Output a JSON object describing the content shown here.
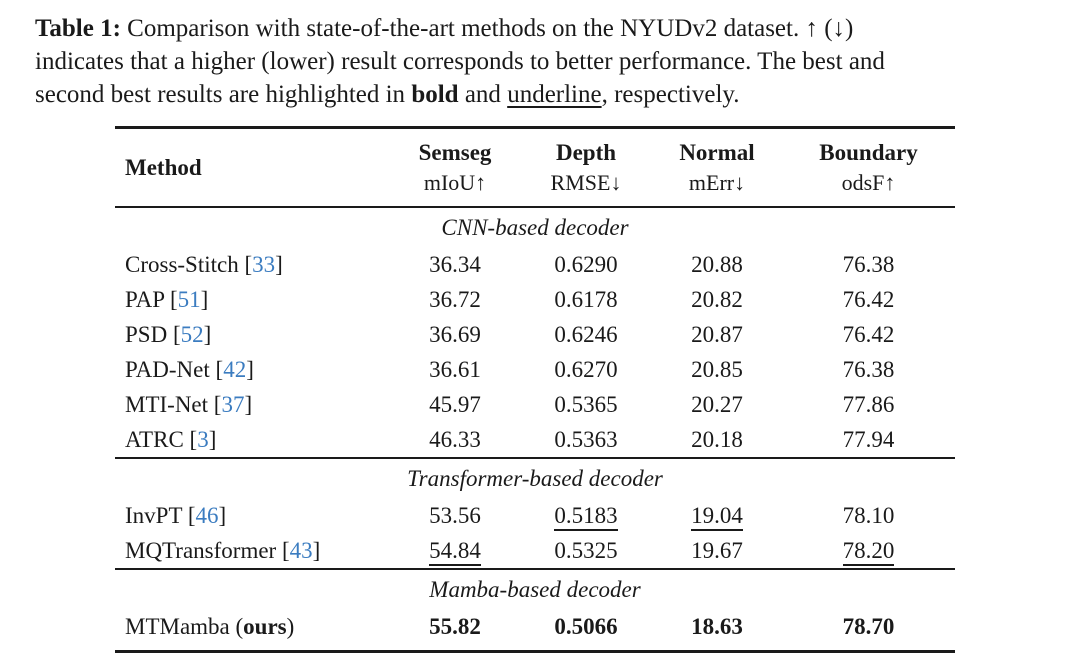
{
  "colors": {
    "citation_link": "#3b7cc0",
    "text": "#1a1a1a",
    "background": "#ffffff"
  },
  "caption": {
    "label": "Table 1:",
    "line1_rest": " Comparison with state-of-the-art methods on the NYUDv2 dataset. ↑ (↓)",
    "line2": "indicates that a higher (lower) result corresponds to better performance. The best and",
    "line3_pre": "second best results are highlighted in ",
    "line3_bold": "bold",
    "line3_mid": " and ",
    "line3_underline": "underline",
    "line3_post": ", respectively."
  },
  "table": {
    "header": {
      "method": "Method",
      "columns": [
        {
          "task": "Semseg",
          "metric": "mIoU↑"
        },
        {
          "task": "Depth",
          "metric": "RMSE↓"
        },
        {
          "task": "Normal",
          "metric": "mErr↓"
        },
        {
          "task": "Boundary",
          "metric": "odsF↑"
        }
      ]
    },
    "sections": [
      {
        "title": "CNN-based decoder",
        "rows": [
          {
            "method_parts": [
              {
                "text": "Cross-Stitch [",
                "kind": "text"
              },
              {
                "text": "33",
                "kind": "cite"
              },
              {
                "text": "]",
                "kind": "text"
              }
            ],
            "values": [
              {
                "text": "36.34",
                "style": "normal"
              },
              {
                "text": "0.6290",
                "style": "normal"
              },
              {
                "text": "20.88",
                "style": "normal"
              },
              {
                "text": "76.38",
                "style": "normal"
              }
            ]
          },
          {
            "method_parts": [
              {
                "text": "PAP [",
                "kind": "text"
              },
              {
                "text": "51",
                "kind": "cite"
              },
              {
                "text": "]",
                "kind": "text"
              }
            ],
            "values": [
              {
                "text": "36.72",
                "style": "normal"
              },
              {
                "text": "0.6178",
                "style": "normal"
              },
              {
                "text": "20.82",
                "style": "normal"
              },
              {
                "text": "76.42",
                "style": "normal"
              }
            ]
          },
          {
            "method_parts": [
              {
                "text": "PSD [",
                "kind": "text"
              },
              {
                "text": "52",
                "kind": "cite"
              },
              {
                "text": "]",
                "kind": "text"
              }
            ],
            "values": [
              {
                "text": "36.69",
                "style": "normal"
              },
              {
                "text": "0.6246",
                "style": "normal"
              },
              {
                "text": "20.87",
                "style": "normal"
              },
              {
                "text": "76.42",
                "style": "normal"
              }
            ]
          },
          {
            "method_parts": [
              {
                "text": "PAD-Net [",
                "kind": "text"
              },
              {
                "text": "42",
                "kind": "cite"
              },
              {
                "text": "]",
                "kind": "text"
              }
            ],
            "values": [
              {
                "text": "36.61",
                "style": "normal"
              },
              {
                "text": "0.6270",
                "style": "normal"
              },
              {
                "text": "20.85",
                "style": "normal"
              },
              {
                "text": "76.38",
                "style": "normal"
              }
            ]
          },
          {
            "method_parts": [
              {
                "text": "MTI-Net [",
                "kind": "text"
              },
              {
                "text": "37",
                "kind": "cite"
              },
              {
                "text": "]",
                "kind": "text"
              }
            ],
            "values": [
              {
                "text": "45.97",
                "style": "normal"
              },
              {
                "text": "0.5365",
                "style": "normal"
              },
              {
                "text": "20.27",
                "style": "normal"
              },
              {
                "text": "77.86",
                "style": "normal"
              }
            ]
          },
          {
            "method_parts": [
              {
                "text": "ATRC [",
                "kind": "text"
              },
              {
                "text": "3",
                "kind": "cite"
              },
              {
                "text": "]",
                "kind": "text"
              }
            ],
            "values": [
              {
                "text": "46.33",
                "style": "normal"
              },
              {
                "text": "0.5363",
                "style": "normal"
              },
              {
                "text": "20.18",
                "style": "normal"
              },
              {
                "text": "77.94",
                "style": "normal"
              }
            ]
          }
        ]
      },
      {
        "title": "Transformer-based decoder",
        "rows": [
          {
            "method_parts": [
              {
                "text": "InvPT [",
                "kind": "text"
              },
              {
                "text": "46",
                "kind": "cite"
              },
              {
                "text": "]",
                "kind": "text"
              }
            ],
            "values": [
              {
                "text": "53.56",
                "style": "normal"
              },
              {
                "text": "0.5183",
                "style": "underline"
              },
              {
                "text": "19.04",
                "style": "underline"
              },
              {
                "text": "78.10",
                "style": "normal"
              }
            ]
          },
          {
            "method_parts": [
              {
                "text": "MQTransformer [",
                "kind": "text"
              },
              {
                "text": "43",
                "kind": "cite"
              },
              {
                "text": "]",
                "kind": "text"
              }
            ],
            "values": [
              {
                "text": "54.84",
                "style": "underline"
              },
              {
                "text": "0.5325",
                "style": "normal"
              },
              {
                "text": "19.67",
                "style": "normal"
              },
              {
                "text": "78.20",
                "style": "underline"
              }
            ]
          }
        ]
      },
      {
        "title": "Mamba-based decoder",
        "rows": [
          {
            "method_parts": [
              {
                "text": "MTMamba (",
                "kind": "text"
              },
              {
                "text": "ours",
                "kind": "bold"
              },
              {
                "text": ")",
                "kind": "text"
              }
            ],
            "values": [
              {
                "text": "55.82",
                "style": "bold"
              },
              {
                "text": "0.5066",
                "style": "bold"
              },
              {
                "text": "18.63",
                "style": "bold"
              },
              {
                "text": "78.70",
                "style": "bold"
              }
            ]
          }
        ]
      }
    ]
  }
}
